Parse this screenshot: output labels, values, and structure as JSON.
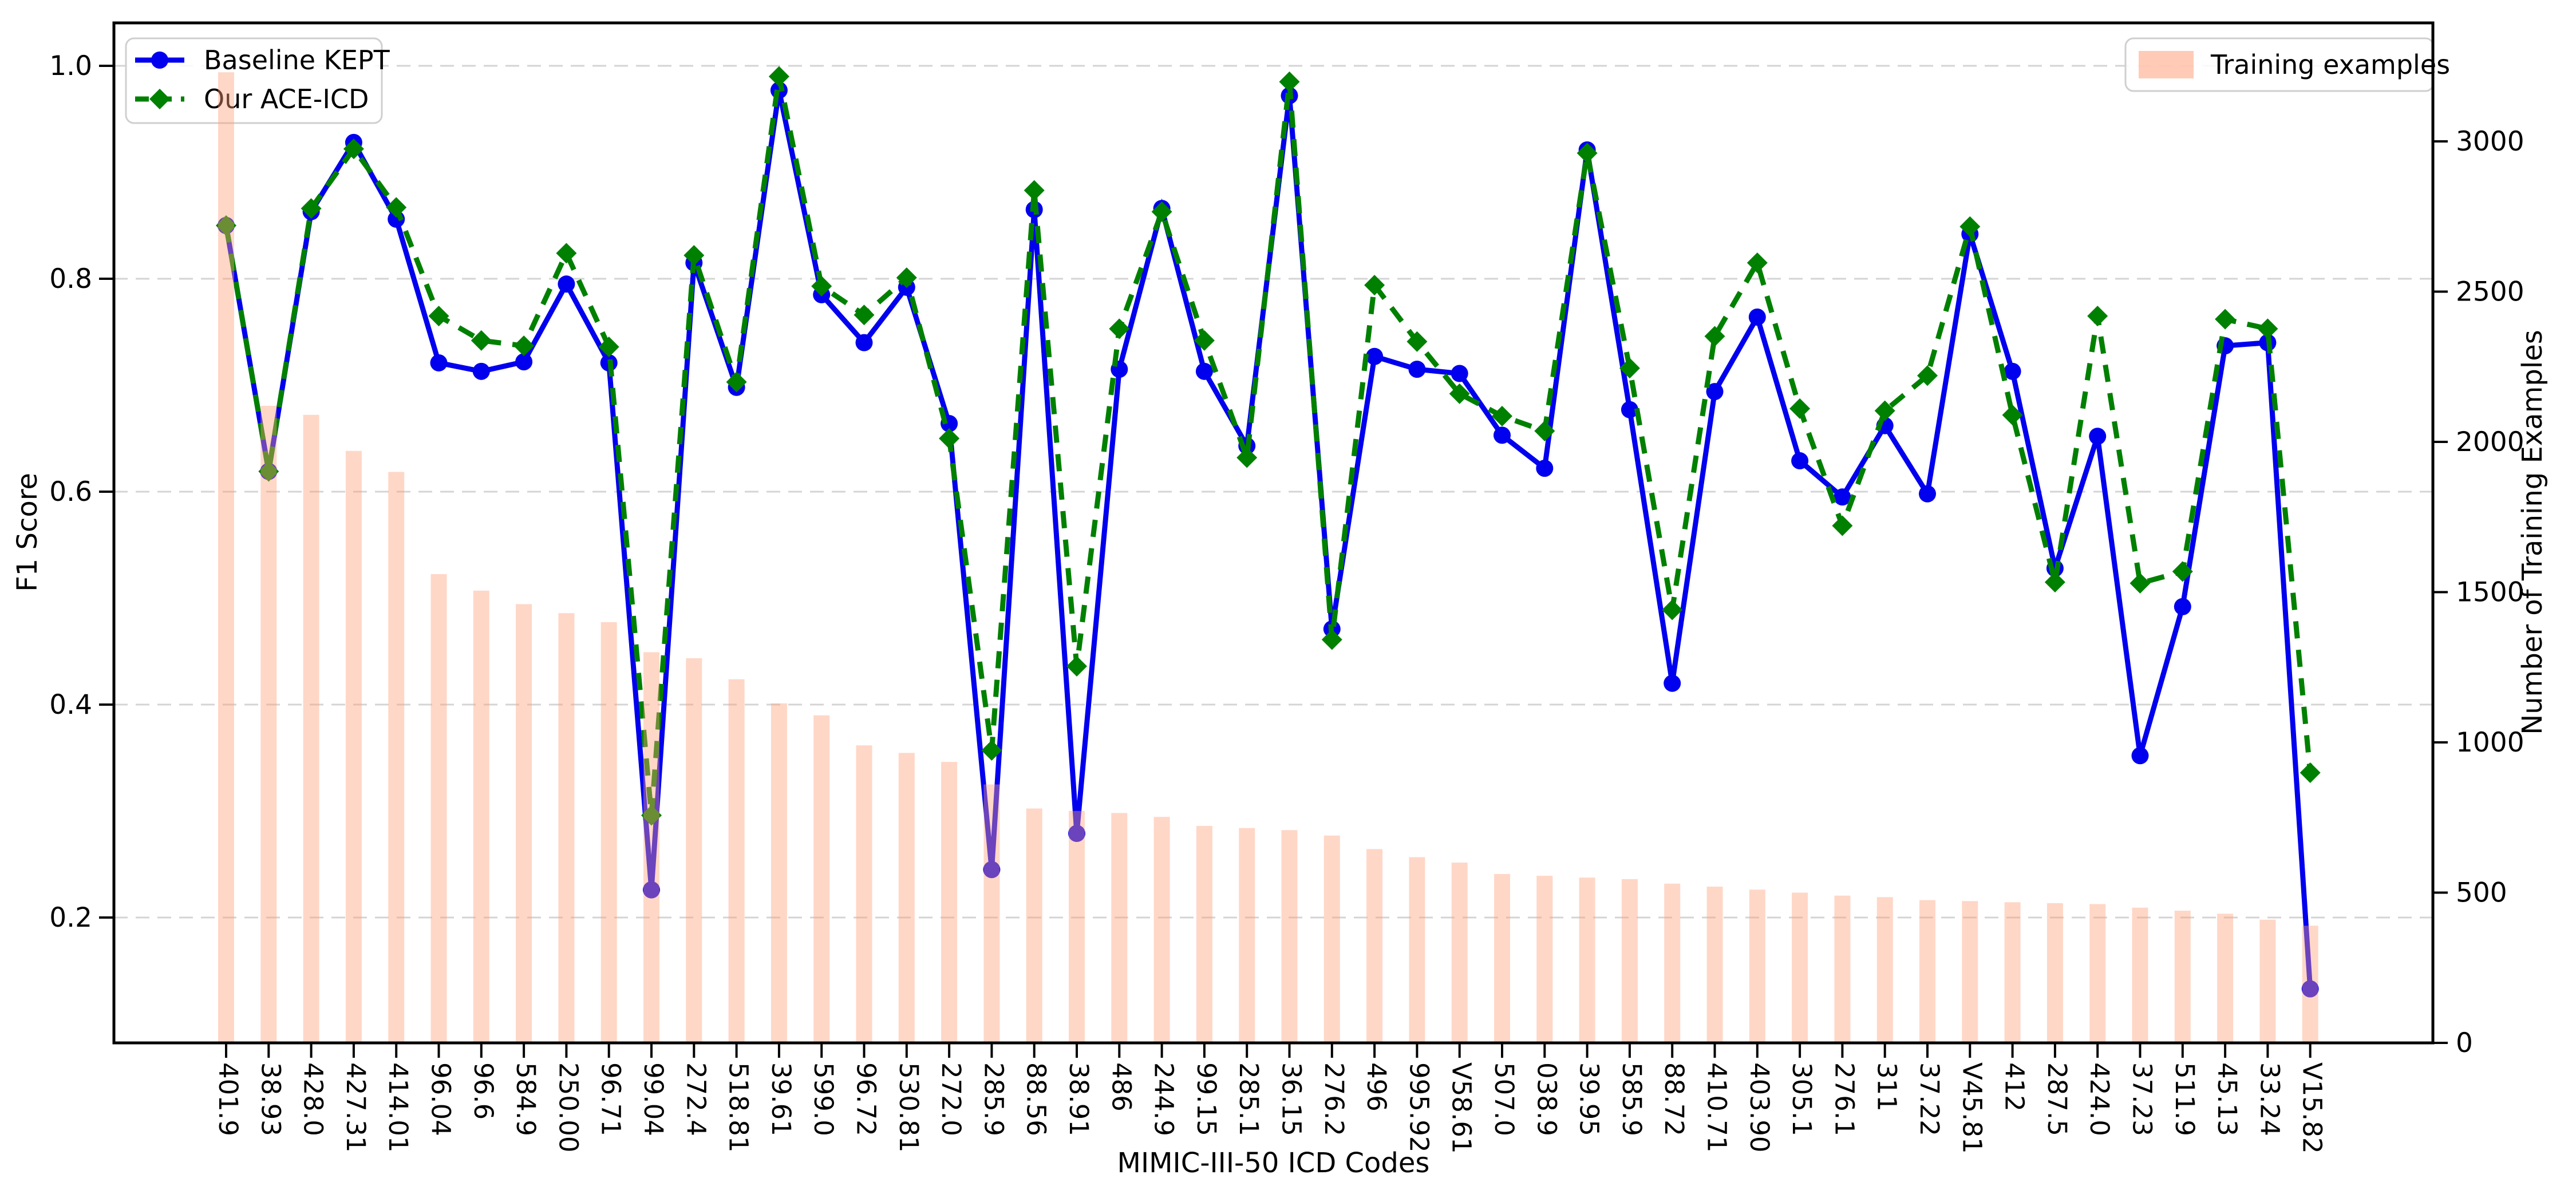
{
  "chart_data": {
    "type": "line+bar",
    "title": "",
    "xlabel": "MIMIC-III-50 ICD Codes",
    "ylabel_left": "F1 Score",
    "ylabel_right": "Number of Training Examples",
    "grid": "horizontal dashed",
    "legend_left_entries": [
      "Baseline KEPT",
      "Our ACE-ICD"
    ],
    "legend_right_entries": [
      "Training examples"
    ],
    "yticks_left": [
      "0.2",
      "0.4",
      "0.6",
      "0.8",
      "1.0"
    ],
    "yticks_left_values": [
      0.2,
      0.4,
      0.6,
      0.8,
      1.0
    ],
    "yticks_right": [
      "0",
      "500",
      "1000",
      "1500",
      "2000",
      "2500",
      "3000"
    ],
    "yticks_right_values": [
      0,
      500,
      1000,
      1500,
      2000,
      2500,
      3000
    ],
    "ylim_left": [
      0.082,
      1.04
    ],
    "ylim_right": [
      0,
      3390
    ],
    "colors": {
      "kept_line": "#0000ee",
      "ace_line": "#008000",
      "bars_base": "#FFA07A",
      "bars_fill": "rgba(255,160,122,0.42)",
      "swatch_fill": "rgba(255,160,122,0.55)",
      "grid_line": "#d4d4d4",
      "legend_border": "#cfcfcf"
    },
    "categories": [
      "401.9",
      "38.93",
      "428.0",
      "427.31",
      "414.01",
      "96.04",
      "96.6",
      "584.9",
      "250.00",
      "96.71",
      "99.04",
      "272.4",
      "518.81",
      "39.61",
      "599.0",
      "96.72",
      "530.81",
      "272.0",
      "285.9",
      "88.56",
      "38.91",
      "486",
      "244.9",
      "99.15",
      "285.1",
      "36.15",
      "276.2",
      "496",
      "995.92",
      "V58.61",
      "507.0",
      "038.9",
      "39.95",
      "585.9",
      "88.72",
      "410.71",
      "403.90",
      "305.1",
      "276.1",
      "311",
      "37.22",
      "V45.81",
      "412",
      "287.5",
      "424.0",
      "37.23",
      "511.9",
      "45.13",
      "33.24",
      "V15.82"
    ],
    "series": [
      {
        "name": "Baseline KEPT",
        "type": "line",
        "axis": "left",
        "marker": "circle",
        "dashed": false,
        "values": [
          0.85,
          0.619,
          0.863,
          0.928,
          0.856,
          0.721,
          0.713,
          0.722,
          0.795,
          0.721,
          0.226,
          0.815,
          0.698,
          0.977,
          0.785,
          0.74,
          0.792,
          0.664,
          0.245,
          0.865,
          0.279,
          0.715,
          0.866,
          0.713,
          0.643,
          0.972,
          0.471,
          0.727,
          0.715,
          0.711,
          0.653,
          0.622,
          0.921,
          0.677,
          0.42,
          0.694,
          0.764,
          0.629,
          0.595,
          0.662,
          0.598,
          0.842,
          0.713,
          0.528,
          0.652,
          0.352,
          0.492,
          0.737,
          0.74,
          0.133
        ]
      },
      {
        "name": "Our ACE-ICD",
        "type": "line",
        "axis": "left",
        "marker": "diamond",
        "dashed": true,
        "values": [
          0.85,
          0.619,
          0.866,
          0.922,
          0.867,
          0.765,
          0.742,
          0.737,
          0.824,
          0.736,
          0.296,
          0.822,
          0.703,
          0.99,
          0.793,
          0.766,
          0.801,
          0.65,
          0.357,
          0.883,
          0.436,
          0.753,
          0.863,
          0.742,
          0.632,
          0.985,
          0.461,
          0.794,
          0.741,
          0.692,
          0.671,
          0.657,
          0.918,
          0.716,
          0.489,
          0.746,
          0.815,
          0.678,
          0.568,
          0.676,
          0.709,
          0.849,
          0.672,
          0.515,
          0.765,
          0.514,
          0.525,
          0.762,
          0.753,
          0.336
        ]
      },
      {
        "name": "Training examples",
        "type": "bar",
        "axis": "right",
        "values": [
          3230,
          2120,
          2090,
          1970,
          1900,
          1560,
          1505,
          1460,
          1430,
          1400,
          1300,
          1280,
          1210,
          1130,
          1090,
          990,
          965,
          935,
          860,
          780,
          772,
          765,
          752,
          722,
          715,
          708,
          690,
          645,
          618,
          600,
          562,
          556,
          550,
          545,
          530,
          520,
          510,
          500,
          490,
          485,
          475,
          472,
          468,
          465,
          462,
          450,
          440,
          430,
          410,
          390
        ]
      }
    ]
  }
}
